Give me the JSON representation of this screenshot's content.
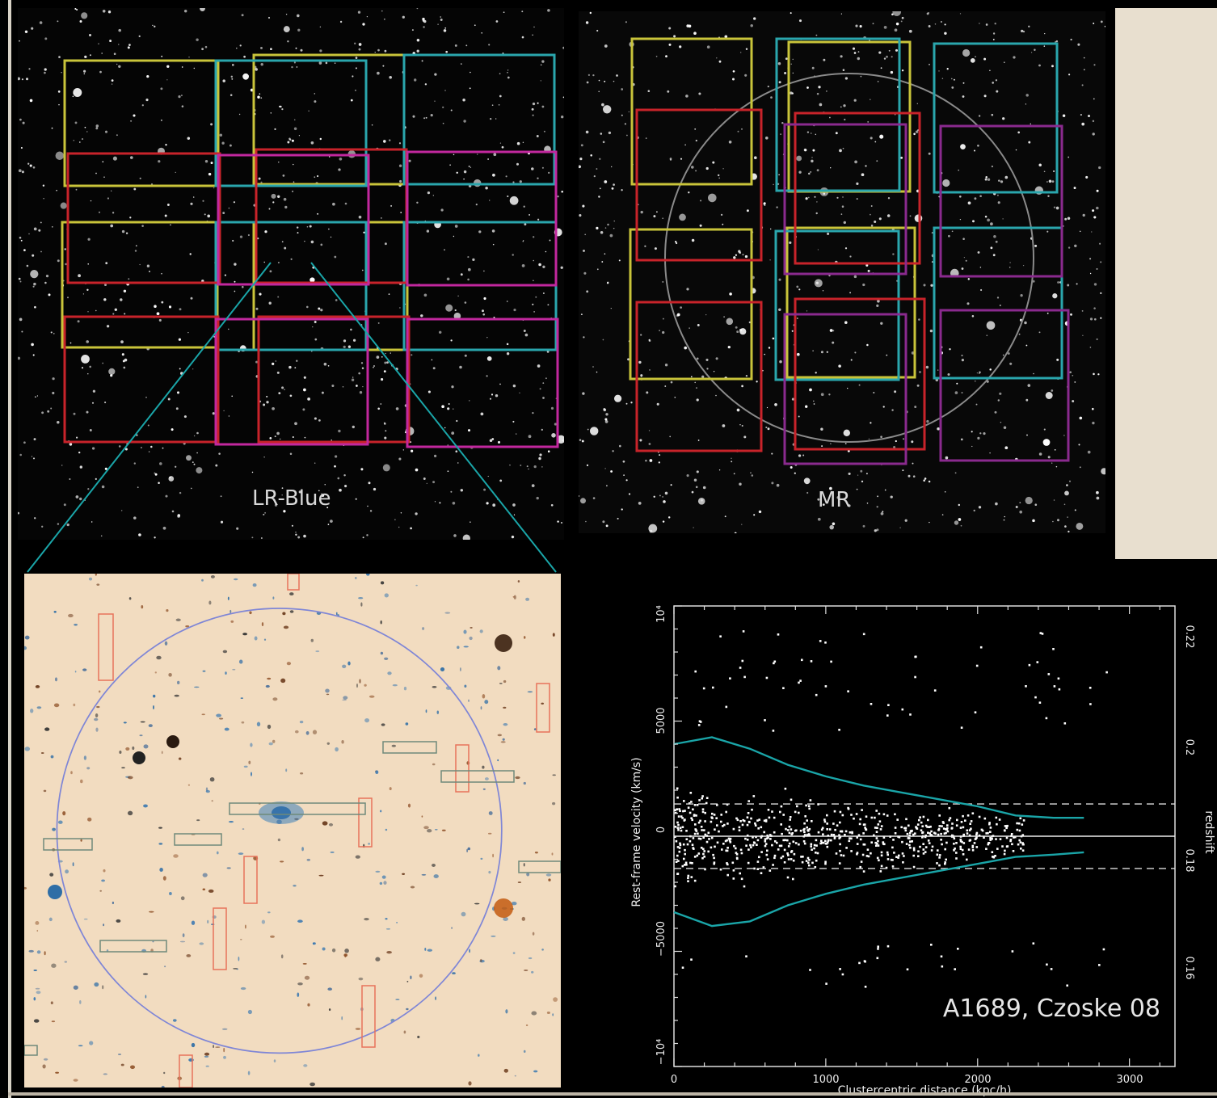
{
  "panels": {
    "lr_label": "LR-Blue",
    "mr_label": "MR"
  },
  "plot": {
    "annotation": "A1689, Czoske 08",
    "xlabel": "Clustercentric distance (kpc/h)",
    "ylabel": "Rest-frame velocity (km/s)",
    "right_label": "redshift",
    "x_ticks": [
      "0",
      "1000",
      "2000",
      "3000"
    ],
    "y_ticks": [
      "10⁴",
      "5000",
      "0",
      "−5000",
      "−10⁴"
    ],
    "right_ticks": [
      "0.22",
      "0.2",
      "0.18",
      "0.16"
    ]
  },
  "chart_data": {
    "type": "scatter",
    "title": "A1689, Czoske 08",
    "xlabel": "Clustercentric distance (kpc/h)",
    "ylabel": "Rest-frame velocity (km/s)",
    "xlim": [
      0,
      3300
    ],
    "ylim": [
      -10000,
      10000
    ],
    "caustic_upper": [
      [
        0,
        4000
      ],
      [
        250,
        4300
      ],
      [
        500,
        3800
      ],
      [
        750,
        3100
      ],
      [
        1000,
        2600
      ],
      [
        1250,
        2200
      ],
      [
        1500,
        1900
      ],
      [
        1750,
        1600
      ],
      [
        2000,
        1300
      ],
      [
        2250,
        900
      ],
      [
        2500,
        800
      ],
      [
        2700,
        800
      ]
    ],
    "caustic_lower": [
      [
        0,
        -3300
      ],
      [
        250,
        -3900
      ],
      [
        500,
        -3700
      ],
      [
        750,
        -3000
      ],
      [
        1000,
        -2500
      ],
      [
        1250,
        -2100
      ],
      [
        1500,
        -1800
      ],
      [
        1750,
        -1500
      ],
      [
        2000,
        -1200
      ],
      [
        2250,
        -900
      ],
      [
        2500,
        -800
      ],
      [
        2700,
        -700
      ]
    ],
    "dashed_levels": [
      1400,
      -1400
    ],
    "colors": {
      "caustic": "#1aa5a8",
      "points": "#ffffff"
    }
  }
}
